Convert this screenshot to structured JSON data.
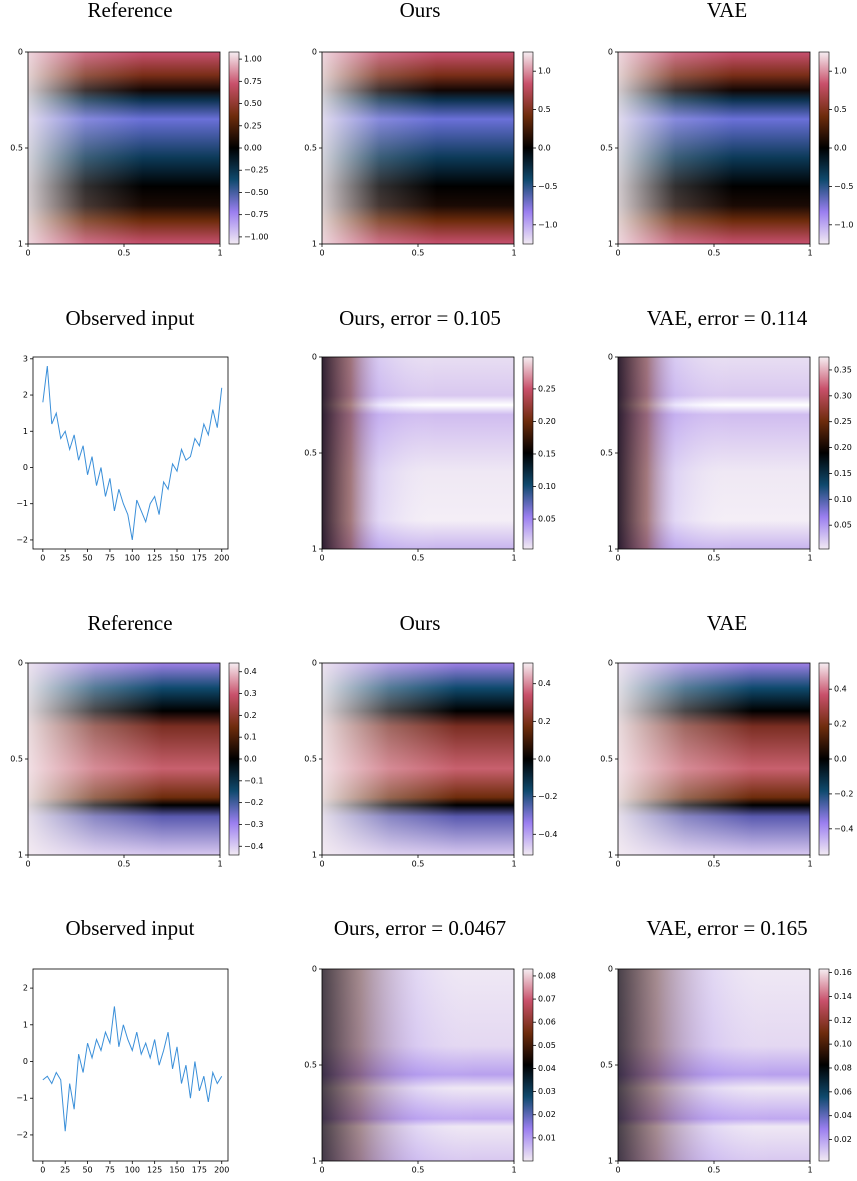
{
  "chart_data": [
    {
      "type": "heatmap",
      "title": "Reference",
      "xlim": [
        0,
        1
      ],
      "ylim": [
        1,
        0
      ],
      "xticks": [
        0,
        0.5,
        1
      ],
      "yticks": [
        0,
        0.5,
        1
      ],
      "colors": [
        "#f2eaf3",
        "#9b7ff0",
        "#0f4a6e",
        "#000000",
        "#6e2c0c",
        "#c8506a",
        "#f6eef2"
      ],
      "clim": [
        -1.08,
        1.08
      ],
      "cticks": [
        {
          "value": -1,
          "label": "−1.00"
        },
        {
          "value": -0.75,
          "label": "−0.75"
        },
        {
          "value": -0.5,
          "label": "−0.50"
        },
        {
          "value": -0.25,
          "label": "−0.25"
        },
        {
          "value": 0,
          "label": "0.00"
        },
        0.25,
        {
          "value": 0.5,
          "label": "0.50"
        },
        0.75,
        {
          "value": 1,
          "label": "1.00"
        }
      ]
    },
    {
      "type": "heatmap",
      "title": "Ours",
      "xlim": [
        0,
        1
      ],
      "ylim": [
        1,
        0
      ],
      "xticks": [
        0,
        0.5,
        1
      ],
      "yticks": [
        0,
        0.5,
        1
      ],
      "colors": [
        "#f2eaf3",
        "#9b7ff0",
        "#0f4a6e",
        "#000000",
        "#6e2c0c",
        "#c8506a",
        "#f6eef2"
      ],
      "clim": [
        -1.25,
        1.25
      ],
      "cticks": [
        {
          "value": -1,
          "label": "−1.0"
        },
        {
          "value": -0.5,
          "label": "−0.5"
        },
        {
          "value": 0,
          "label": "0.0"
        },
        0.5,
        {
          "value": 1,
          "label": "1.0"
        }
      ]
    },
    {
      "type": "heatmap",
      "title": "VAE",
      "xlim": [
        0,
        1
      ],
      "ylim": [
        1,
        0
      ],
      "xticks": [
        0,
        0.5,
        1
      ],
      "yticks": [
        0,
        0.5,
        1
      ],
      "colors": [
        "#f2eaf3",
        "#9b7ff0",
        "#0f4a6e",
        "#000000",
        "#6e2c0c",
        "#c8506a",
        "#f6eef2"
      ],
      "clim": [
        -1.25,
        1.25
      ],
      "cticks": [
        {
          "value": -1,
          "label": "−1.0"
        },
        {
          "value": -0.5,
          "label": "−0.5"
        },
        {
          "value": 0,
          "label": "0.0"
        },
        0.5,
        {
          "value": 1,
          "label": "1.0"
        }
      ]
    },
    {
      "type": "line",
      "title": "Observed input",
      "color": "#3a8fd9",
      "xlim": [
        -11,
        207
      ],
      "ylim": [
        -2.25,
        3.05
      ],
      "xticks": [
        0,
        25,
        50,
        75,
        100,
        125,
        150,
        175,
        200
      ],
      "yticks": [
        {
          "value": -2,
          "label": "−2"
        },
        {
          "value": -1,
          "label": "−1"
        },
        0,
        1,
        2,
        3
      ],
      "x": [
        0,
        5,
        10,
        15,
        20,
        25,
        30,
        35,
        40,
        45,
        50,
        55,
        60,
        65,
        70,
        75,
        80,
        85,
        90,
        95,
        100,
        105,
        110,
        115,
        120,
        125,
        130,
        135,
        140,
        145,
        150,
        155,
        160,
        165,
        170,
        175,
        180,
        185,
        190,
        195,
        200
      ],
      "values": [
        1.8,
        2.8,
        1.2,
        1.5,
        0.8,
        1.0,
        0.5,
        0.9,
        0.2,
        0.6,
        -0.2,
        0.3,
        -0.5,
        0.0,
        -0.8,
        -0.3,
        -1.2,
        -0.6,
        -1.0,
        -1.3,
        -2.0,
        -0.9,
        -1.2,
        -1.5,
        -1.0,
        -0.8,
        -1.3,
        -0.4,
        -0.6,
        0.1,
        -0.1,
        0.5,
        0.2,
        0.3,
        0.8,
        0.6,
        1.2,
        0.9,
        1.6,
        1.1,
        2.2
      ]
    },
    {
      "type": "heatmap",
      "title": "Ours, error = 0.105",
      "xlim": [
        0,
        1
      ],
      "ylim": [
        1,
        0
      ],
      "xticks": [
        0,
        0.5,
        1
      ],
      "yticks": [
        0,
        0.5,
        1
      ],
      "colors": [
        "#f2eaf3",
        "#9b7ff0",
        "#0f4a6e",
        "#000000",
        "#6e2c0c",
        "#c8506a",
        "#f6eef2"
      ],
      "clim": [
        0.004,
        0.299
      ],
      "cticks": [
        0.05,
        {
          "value": 0.1,
          "label": "0.10"
        },
        0.15,
        {
          "value": 0.2,
          "label": "0.20"
        },
        0.25
      ]
    },
    {
      "type": "heatmap",
      "title": "VAE, error = 0.114",
      "xlim": [
        0,
        1
      ],
      "ylim": [
        1,
        0
      ],
      "xticks": [
        0,
        0.5,
        1
      ],
      "yticks": [
        0,
        0.5,
        1
      ],
      "colors": [
        "#f2eaf3",
        "#9b7ff0",
        "#0f4a6e",
        "#000000",
        "#6e2c0c",
        "#c8506a",
        "#f6eef2"
      ],
      "clim": [
        0.004,
        0.375
      ],
      "cticks": [
        0.05,
        {
          "value": 0.1,
          "label": "0.10"
        },
        0.15,
        {
          "value": 0.2,
          "label": "0.20"
        },
        0.25,
        {
          "value": 0.3,
          "label": "0.30"
        },
        0.35
      ]
    },
    {
      "type": "heatmap",
      "title": "Reference",
      "xlim": [
        0,
        1
      ],
      "ylim": [
        1,
        0
      ],
      "xticks": [
        0,
        0.5,
        1
      ],
      "yticks": [
        0,
        0.5,
        1
      ],
      "colors": [
        "#f2eaf3",
        "#9b7ff0",
        "#0f4a6e",
        "#000000",
        "#6e2c0c",
        "#c8506a",
        "#f6eef2"
      ],
      "clim": [
        -0.44,
        0.44
      ],
      "cticks": [
        {
          "value": -0.4,
          "label": "−0.4"
        },
        {
          "value": -0.3,
          "label": "−0.3"
        },
        {
          "value": -0.2,
          "label": "−0.2"
        },
        {
          "value": -0.1,
          "label": "−0.1"
        },
        {
          "value": 0,
          "label": "0.0"
        },
        0.1,
        0.2,
        0.3,
        0.4
      ]
    },
    {
      "type": "heatmap",
      "title": "Ours",
      "xlim": [
        0,
        1
      ],
      "ylim": [
        1,
        0
      ],
      "xticks": [
        0,
        0.5,
        1
      ],
      "yticks": [
        0,
        0.5,
        1
      ],
      "colors": [
        "#f2eaf3",
        "#9b7ff0",
        "#0f4a6e",
        "#000000",
        "#6e2c0c",
        "#c8506a",
        "#f6eef2"
      ],
      "clim": [
        -0.51,
        0.51
      ],
      "cticks": [
        {
          "value": -0.4,
          "label": "−0.4"
        },
        {
          "value": -0.2,
          "label": "−0.2"
        },
        {
          "value": 0,
          "label": "0.0"
        },
        0.2,
        0.4
      ]
    },
    {
      "type": "heatmap",
      "title": "VAE",
      "xlim": [
        0,
        1
      ],
      "ylim": [
        1,
        0
      ],
      "xticks": [
        0,
        0.5,
        1
      ],
      "yticks": [
        0,
        0.5,
        1
      ],
      "colors": [
        "#f2eaf3",
        "#9b7ff0",
        "#0f4a6e",
        "#000000",
        "#6e2c0c",
        "#c8506a",
        "#f6eef2"
      ],
      "clim": [
        -0.55,
        0.55
      ],
      "cticks": [
        {
          "value": -0.4,
          "label": "−0.4"
        },
        {
          "value": -0.2,
          "label": "−0.2"
        },
        {
          "value": 0,
          "label": "0.0"
        },
        0.2,
        0.4
      ]
    },
    {
      "type": "line",
      "title": "Observed input",
      "color": "#3a8fd9",
      "xlim": [
        -11,
        207
      ],
      "ylim": [
        -2.71,
        2.52
      ],
      "xticks": [
        0,
        25,
        50,
        75,
        100,
        125,
        150,
        175,
        200
      ],
      "yticks": [
        {
          "value": -2,
          "label": "−2"
        },
        {
          "value": -1,
          "label": "−1"
        },
        0,
        1,
        2
      ],
      "x": [
        0,
        5,
        10,
        15,
        20,
        25,
        30,
        35,
        40,
        45,
        50,
        55,
        60,
        65,
        70,
        75,
        80,
        85,
        90,
        95,
        100,
        105,
        110,
        115,
        120,
        125,
        130,
        135,
        140,
        145,
        150,
        155,
        160,
        165,
        170,
        175,
        180,
        185,
        190,
        195,
        200
      ],
      "values": [
        -0.5,
        -0.4,
        -0.6,
        -0.3,
        -0.5,
        -1.9,
        -0.6,
        -1.3,
        0.2,
        -0.3,
        0.5,
        0.1,
        0.6,
        0.3,
        0.8,
        0.5,
        1.5,
        0.4,
        1.0,
        0.6,
        0.3,
        0.8,
        0.2,
        0.5,
        0.1,
        0.6,
        -0.1,
        0.3,
        0.8,
        -0.2,
        0.4,
        -0.6,
        -0.1,
        -1.0,
        0.0,
        -0.8,
        -0.4,
        -1.1,
        -0.3,
        -0.6,
        -0.4
      ]
    },
    {
      "type": "heatmap",
      "title": "Ours, error = 0.0467",
      "xlim": [
        0,
        1
      ],
      "ylim": [
        1,
        0
      ],
      "xticks": [
        0,
        0.5,
        1
      ],
      "yticks": [
        0,
        0.5,
        1
      ],
      "colors": [
        "#f2eaf3",
        "#9b7ff0",
        "#0f4a6e",
        "#000000",
        "#6e2c0c",
        "#c8506a",
        "#f6eef2"
      ],
      "clim": [
        0,
        0.083
      ],
      "cticks": [
        0.01,
        0.02,
        0.03,
        0.04,
        0.05,
        0.06,
        0.07,
        0.08
      ]
    },
    {
      "type": "heatmap",
      "title": "VAE, error = 0.165",
      "xlim": [
        0,
        1
      ],
      "ylim": [
        1,
        0
      ],
      "xticks": [
        0,
        0.5,
        1
      ],
      "yticks": [
        0,
        0.5,
        1
      ],
      "colors": [
        "#f2eaf3",
        "#9b7ff0",
        "#0f4a6e",
        "#000000",
        "#6e2c0c",
        "#c8506a",
        "#f6eef2"
      ],
      "clim": [
        0.002,
        0.163
      ],
      "cticks": [
        0.02,
        0.04,
        0.06,
        0.08,
        {
          "value": 0.1,
          "label": "0.10"
        },
        0.12,
        0.14,
        0.16
      ]
    }
  ]
}
